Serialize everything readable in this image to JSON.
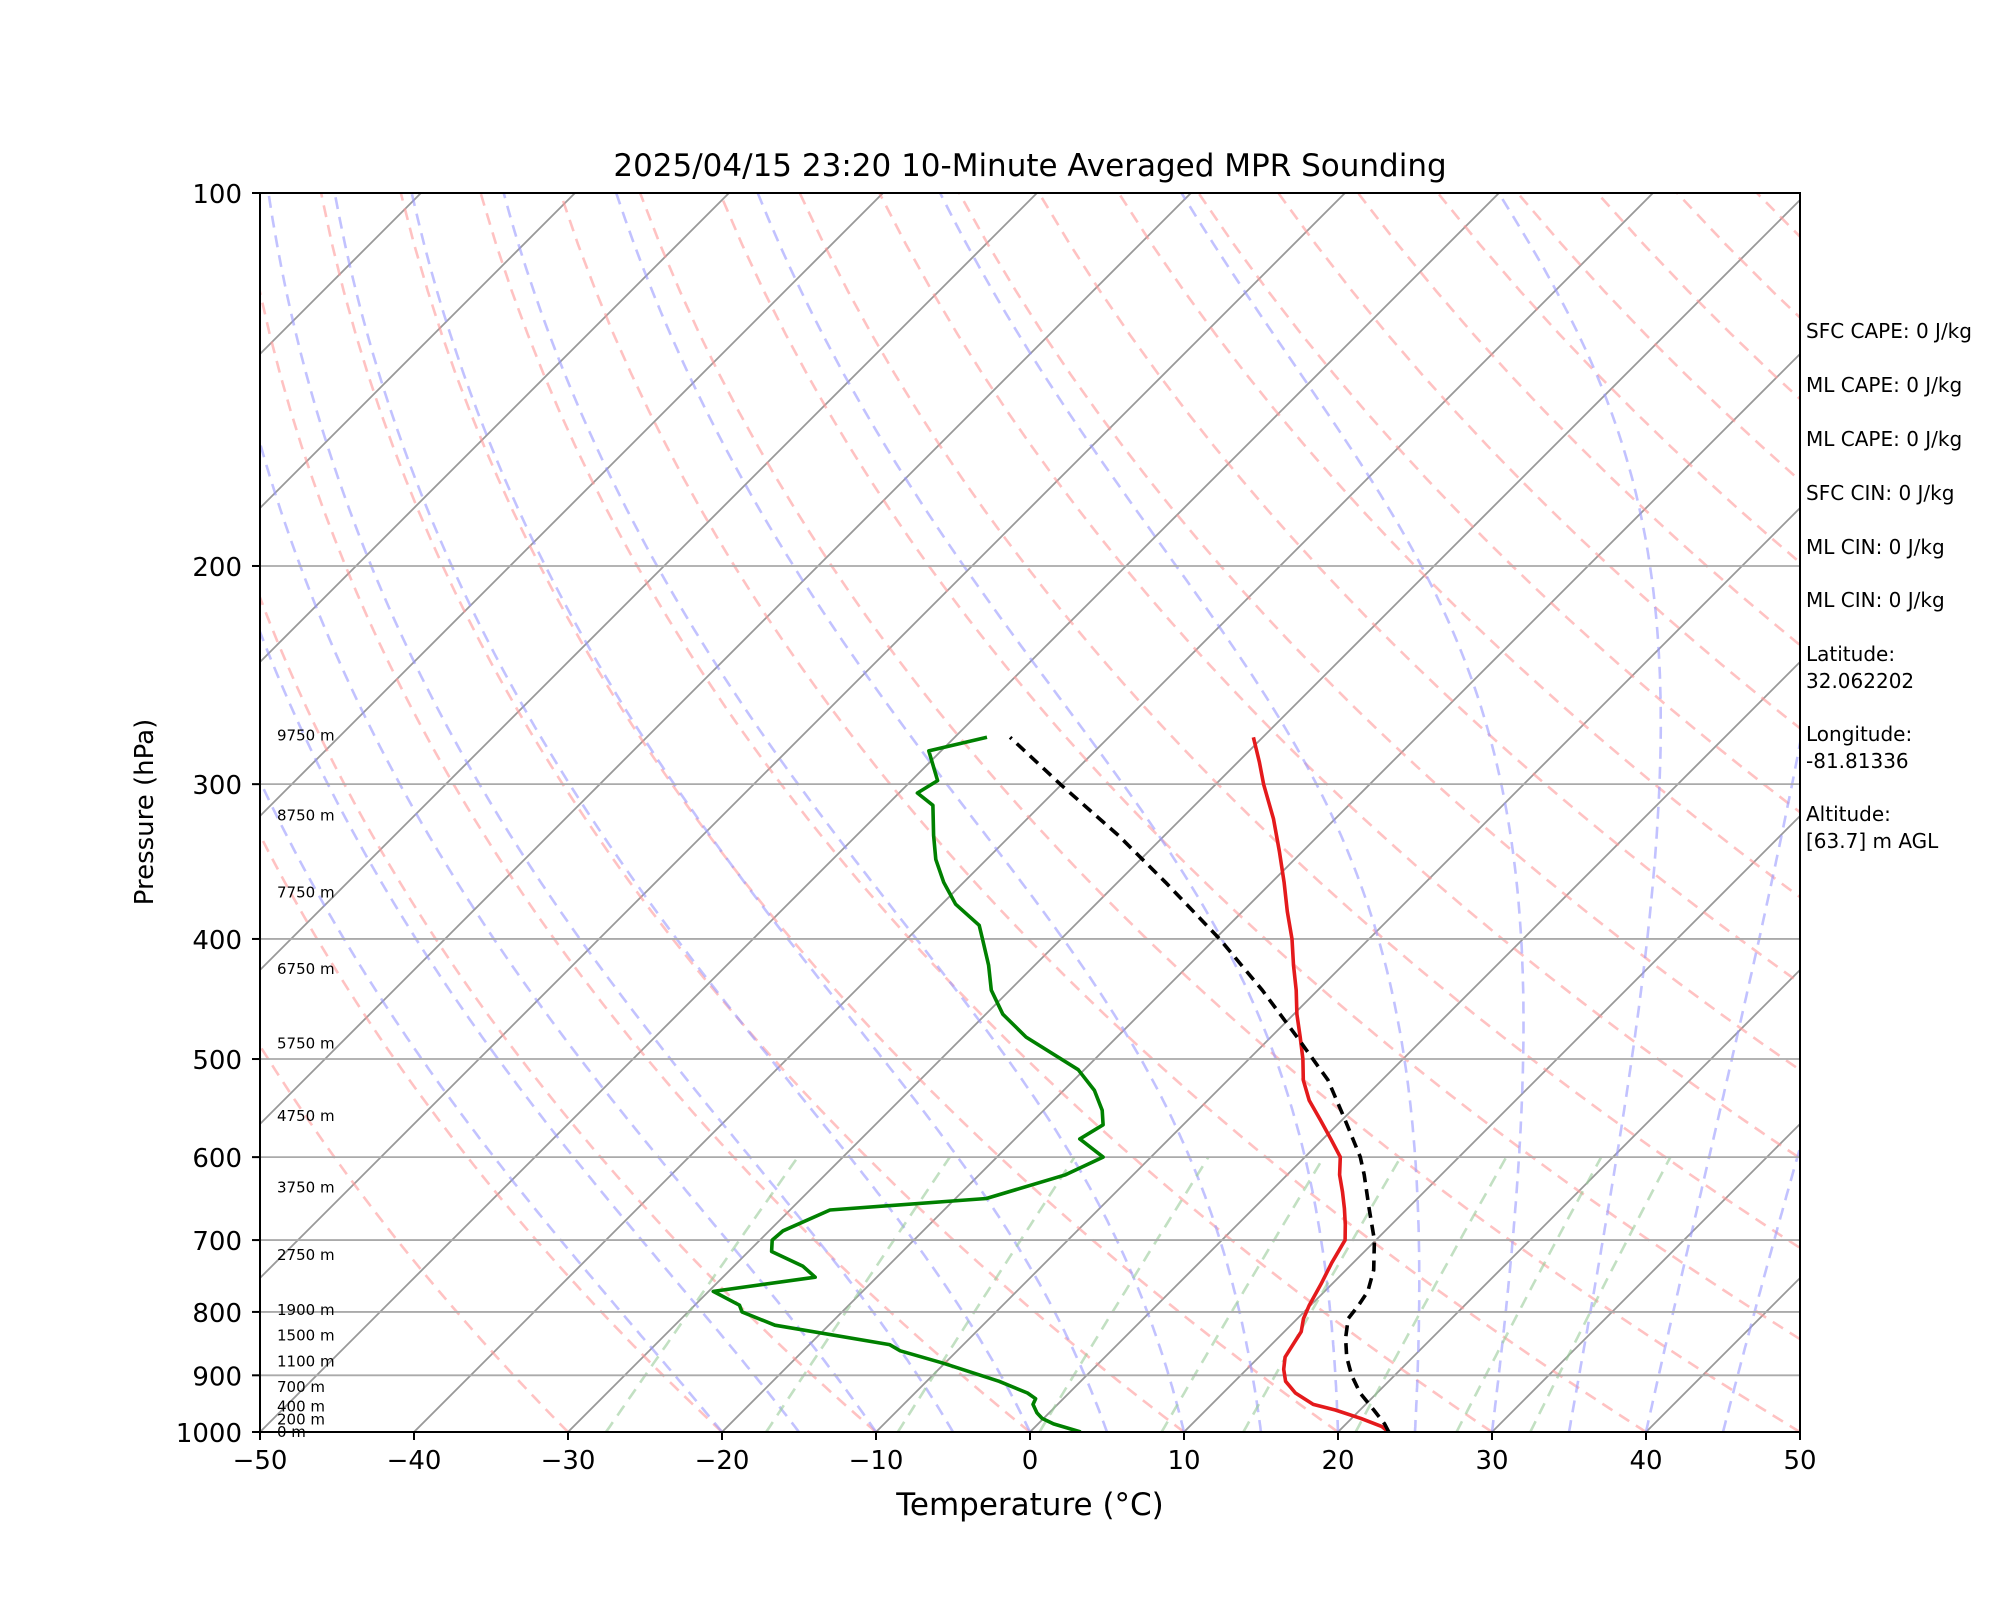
{
  "chart_data": {
    "type": "line",
    "subtype": "skew-T log-p sounding",
    "title": "2025/04/15 23:20 10-Minute Averaged MPR Sounding",
    "xlabel": "Temperature (°C)",
    "ylabel": "Pressure (hPa)",
    "xlim": [
      -50,
      50
    ],
    "ylim": [
      1000,
      100
    ],
    "y_scale": "log (reversed)",
    "x_ticks": [
      "−50",
      "−40",
      "−30",
      "−20",
      "−10",
      "0",
      "10",
      "20",
      "30",
      "40",
      "50"
    ],
    "y_ticks": [
      {
        "p": 100,
        "label": "100"
      },
      {
        "p": 200,
        "label": "200"
      },
      {
        "p": 300,
        "label": "300"
      },
      {
        "p": 400,
        "label": "400"
      },
      {
        "p": 500,
        "label": "500"
      },
      {
        "p": 600,
        "label": "600"
      },
      {
        "p": 700,
        "label": "700"
      },
      {
        "p": 800,
        "label": "800"
      },
      {
        "p": 900,
        "label": "900"
      },
      {
        "p": 1000,
        "label": "1000"
      }
    ],
    "grid": "horizontal isobars",
    "series": [
      {
        "id": "temperature",
        "color": "#e41a1c",
        "points": [
          [
            1000,
            23.3
          ],
          [
            990,
            22.5
          ],
          [
            975,
            20.6
          ],
          [
            960,
            18.4
          ],
          [
            950,
            16.6
          ],
          [
            930,
            14.7
          ],
          [
            910,
            13.3
          ],
          [
            890,
            12.4
          ],
          [
            870,
            11.7
          ],
          [
            850,
            11.4
          ],
          [
            830,
            11.1
          ],
          [
            810,
            10.4
          ],
          [
            790,
            9.9
          ],
          [
            760,
            9.3
          ],
          [
            730,
            8.6
          ],
          [
            700,
            8.0
          ],
          [
            680,
            7.0
          ],
          [
            660,
            5.9
          ],
          [
            640,
            4.7
          ],
          [
            620,
            3.4
          ],
          [
            600,
            2.3
          ],
          [
            580,
            0.5
          ],
          [
            560,
            -1.4
          ],
          [
            540,
            -3.4
          ],
          [
            520,
            -5.1
          ],
          [
            500,
            -6.5
          ],
          [
            480,
            -8.1
          ],
          [
            460,
            -9.8
          ],
          [
            440,
            -11.4
          ],
          [
            420,
            -13.2
          ],
          [
            400,
            -15.0
          ],
          [
            380,
            -17.1
          ],
          [
            360,
            -19.2
          ],
          [
            340,
            -21.5
          ],
          [
            320,
            -24.0
          ],
          [
            300,
            -26.9
          ],
          [
            288,
            -28.6
          ],
          [
            275,
            -30.6
          ]
        ]
      },
      {
        "id": "dewpoint",
        "color": "#008000",
        "points": [
          [
            1000,
            3.3
          ],
          [
            985,
            1.0
          ],
          [
            975,
            -0.1
          ],
          [
            965,
            -0.8
          ],
          [
            950,
            -1.6
          ],
          [
            940,
            -1.8
          ],
          [
            930,
            -2.7
          ],
          [
            910,
            -5.3
          ],
          [
            880,
            -10.1
          ],
          [
            860,
            -13.7
          ],
          [
            850,
            -14.8
          ],
          [
            820,
            -23.5
          ],
          [
            800,
            -26.5
          ],
          [
            790,
            -27.1
          ],
          [
            770,
            -29.7
          ],
          [
            750,
            -24.0
          ],
          [
            735,
            -25.5
          ],
          [
            715,
            -28.5
          ],
          [
            700,
            -29.2
          ],
          [
            688,
            -29.1
          ],
          [
            662,
            -27.4
          ],
          [
            648,
            -18.0
          ],
          [
            620,
            -14.4
          ],
          [
            600,
            -13.1
          ],
          [
            580,
            -15.8
          ],
          [
            565,
            -15.2
          ],
          [
            550,
            -16.2
          ],
          [
            530,
            -18.0
          ],
          [
            510,
            -20.4
          ],
          [
            480,
            -25.9
          ],
          [
            460,
            -28.9
          ],
          [
            440,
            -31.2
          ],
          [
            420,
            -33.0
          ],
          [
            400,
            -35.1
          ],
          [
            390,
            -36.2
          ],
          [
            375,
            -39.1
          ],
          [
            360,
            -41.3
          ],
          [
            345,
            -43.3
          ],
          [
            330,
            -45.0
          ],
          [
            312,
            -47.0
          ],
          [
            305,
            -48.8
          ],
          [
            298,
            -48.3
          ],
          [
            282,
            -50.8
          ],
          [
            275,
            -47.9
          ]
        ]
      },
      {
        "id": "parcel",
        "color": "#000000",
        "dash": "dashed",
        "points": [
          [
            1000,
            23.3
          ],
          [
            985,
            22.5
          ],
          [
            960,
            20.9
          ],
          [
            930,
            18.9
          ],
          [
            900,
            17.2
          ],
          [
            870,
            15.7
          ],
          [
            840,
            14.4
          ],
          [
            810,
            13.3
          ],
          [
            790,
            13.1
          ],
          [
            770,
            12.8
          ],
          [
            740,
            11.8
          ],
          [
            700,
            9.9
          ],
          [
            660,
            7.5
          ],
          [
            620,
            5.0
          ],
          [
            600,
            3.6
          ],
          [
            560,
            0.2
          ],
          [
            520,
            -3.5
          ],
          [
            480,
            -8.3
          ],
          [
            440,
            -13.6
          ],
          [
            400,
            -19.7
          ],
          [
            360,
            -26.9
          ],
          [
            330,
            -33.0
          ],
          [
            300,
            -40.1
          ],
          [
            275,
            -46.4
          ]
        ]
      }
    ],
    "height_labels": [
      {
        "p": 1000,
        "label": "0 m"
      },
      {
        "p": 977,
        "label": "200 m"
      },
      {
        "p": 954,
        "label": "400 m"
      },
      {
        "p": 920,
        "label": "700 m"
      },
      {
        "p": 877,
        "label": "1100 m"
      },
      {
        "p": 836,
        "label": "1500 m"
      },
      {
        "p": 797,
        "label": "1900 m"
      },
      {
        "p": 720,
        "label": "2750 m"
      },
      {
        "p": 635,
        "label": "3750 m"
      },
      {
        "p": 556,
        "label": "4750 m"
      },
      {
        "p": 486,
        "label": "5750 m"
      },
      {
        "p": 423,
        "label": "6750 m"
      },
      {
        "p": 367,
        "label": "7750 m"
      },
      {
        "p": 318,
        "label": "8750 m"
      },
      {
        "p": 274,
        "label": "9750 m"
      }
    ],
    "background_lines": {
      "isotherms": {
        "color": "#999999",
        "skewed": true
      },
      "dry_adiabats": {
        "color": "#ff9999",
        "dash": "dashed"
      },
      "moist_adiabats": {
        "color": "#9999ff",
        "dash": "dashed"
      },
      "mixing_ratio": {
        "color": "#99cc99",
        "dash": "dashed"
      }
    }
  },
  "info": {
    "sfc_cape": "SFC CAPE: 0 J/kg",
    "ml_cape_1": "ML CAPE: 0 J/kg",
    "ml_cape_2": "ML CAPE: 0 J/kg",
    "sfc_cin": "SFC CIN: 0 J/kg",
    "ml_cin_1": "ML CIN: 0 J/kg",
    "ml_cin_2": "ML CIN: 0 J/kg",
    "latitude_label": "Latitude:",
    "latitude_value": "32.062202",
    "longitude_label": "Longitude:",
    "longitude_value": "-81.81336",
    "altitude_label": "Altitude:",
    "altitude_value": "[63.7] m AGL"
  }
}
